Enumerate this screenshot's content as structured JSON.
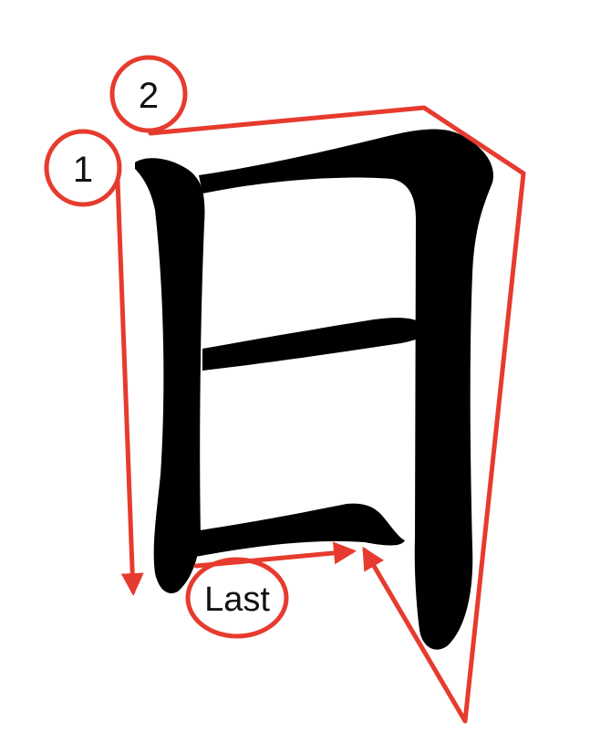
{
  "diagram": {
    "character": "日",
    "stroke_order_labels": {
      "first": "1",
      "second": "2",
      "last": "Last"
    },
    "colors": {
      "annotation": "#e63b2e",
      "ink": "#000000",
      "background": "#ffffff"
    }
  }
}
